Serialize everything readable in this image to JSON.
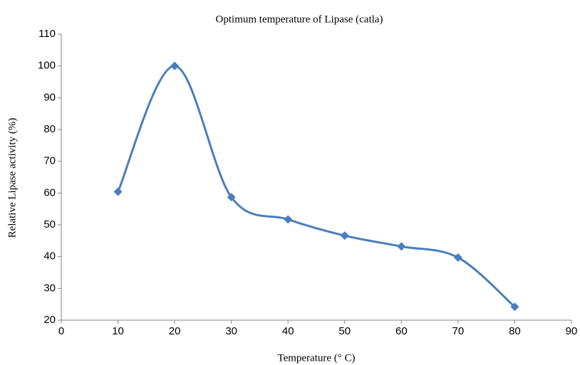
{
  "chart_data": {
    "type": "line",
    "title": "Optimum temperature  of Lipase  (catla)",
    "x_label": "Temperature (° C)",
    "y_label": "Relative Lipase activity (%)",
    "x": [
      10,
      20,
      30,
      40,
      50,
      60,
      70,
      80
    ],
    "series": [
      {
        "name": "Lipase (catla)",
        "color": "#4a7ebb",
        "values": [
          60.4,
          100,
          58.7,
          51.7,
          46.6,
          43.2,
          39.7,
          24.2
        ]
      }
    ],
    "xlim": [
      0,
      90
    ],
    "xticks": [
      0,
      10,
      20,
      30,
      40,
      50,
      60,
      70,
      80,
      90
    ],
    "ylim": [
      20,
      110
    ],
    "yticks": [
      20,
      30,
      40,
      50,
      60,
      70,
      80,
      90,
      100,
      110
    ],
    "smooth": true,
    "grid": false
  }
}
